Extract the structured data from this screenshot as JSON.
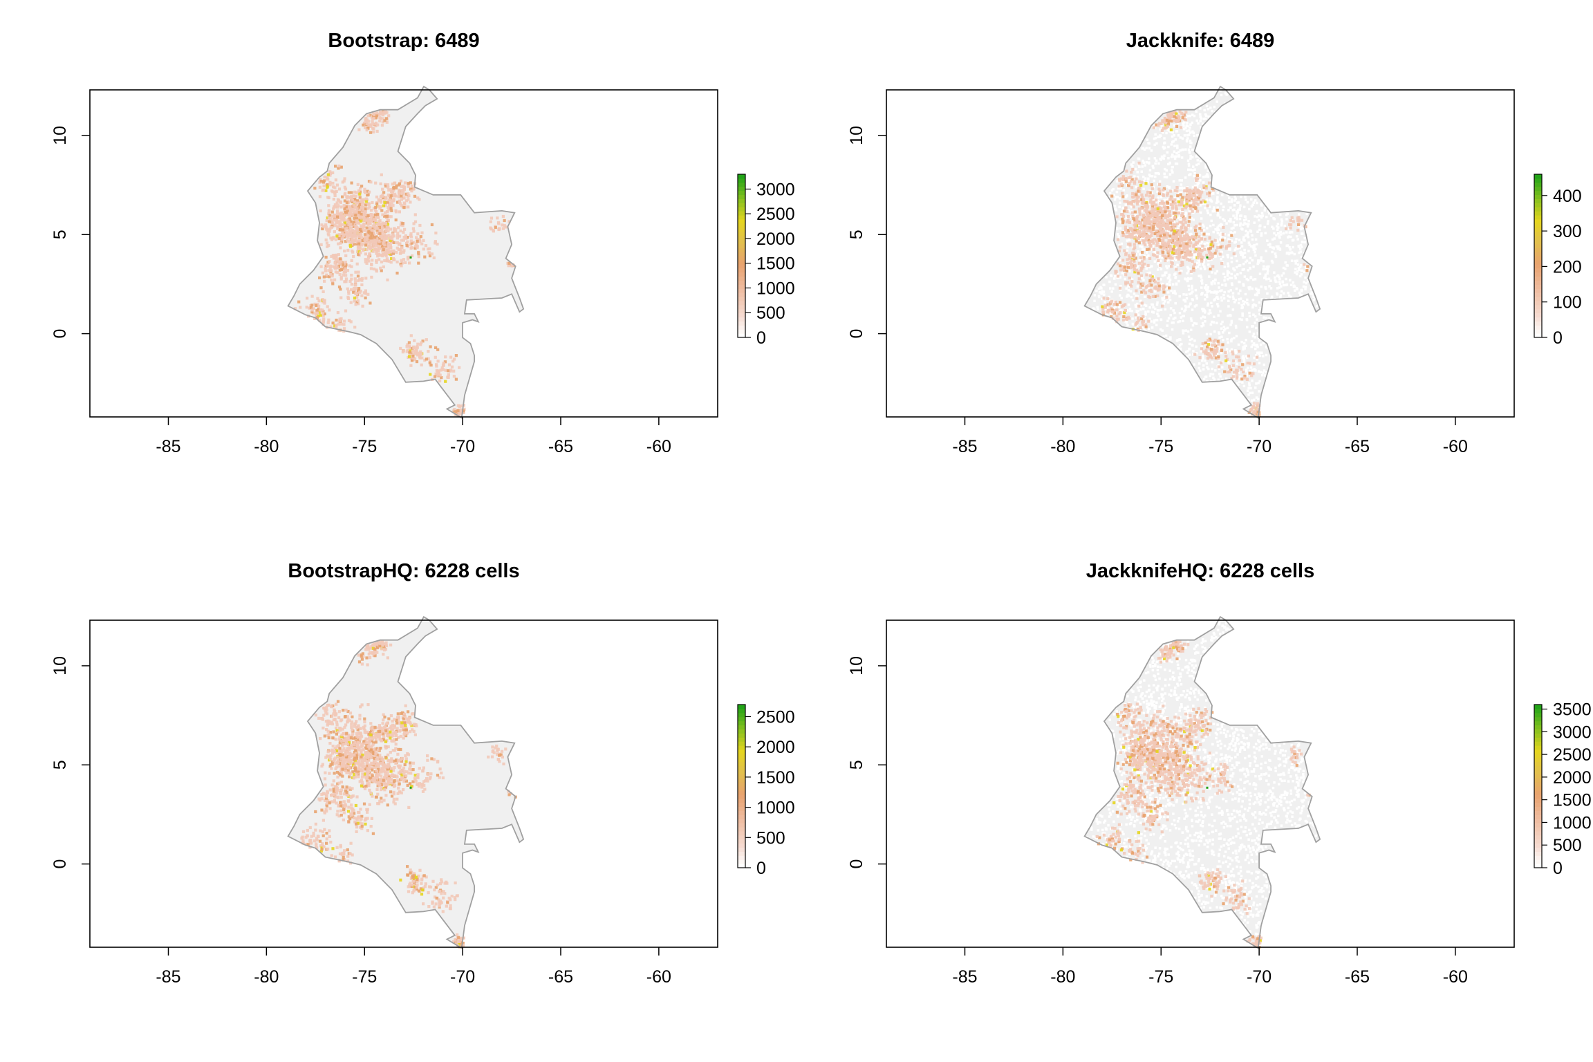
{
  "panels": [
    {
      "title": "Bootstrap: 6489",
      "x_ticks": [
        "-85",
        "-80",
        "-75",
        "-70",
        "-65",
        "-60"
      ],
      "y_ticks": [
        "0",
        "5",
        "10"
      ],
      "legend_labels": [
        "0",
        "500",
        "1000",
        "1500",
        "2000",
        "2500",
        "3000"
      ],
      "legend_max": 3300,
      "sparse_background": false
    },
    {
      "title": "Jackknife: 6489",
      "x_ticks": [
        "-85",
        "-80",
        "-75",
        "-70",
        "-65",
        "-60"
      ],
      "y_ticks": [
        "0",
        "5",
        "10"
      ],
      "legend_labels": [
        "0",
        "100",
        "200",
        "300",
        "400"
      ],
      "legend_max": 460,
      "sparse_background": true
    },
    {
      "title": "BootstrapHQ: 6228 cells",
      "x_ticks": [
        "-85",
        "-80",
        "-75",
        "-70",
        "-65",
        "-60"
      ],
      "y_ticks": [
        "0",
        "5",
        "10"
      ],
      "legend_labels": [
        "0",
        "500",
        "1000",
        "1500",
        "2000",
        "2500"
      ],
      "legend_max": 2700,
      "sparse_background": false
    },
    {
      "title": "JackknifeHQ: 6228 cells",
      "x_ticks": [
        "-85",
        "-80",
        "-75",
        "-70",
        "-65",
        "-60"
      ],
      "y_ticks": [
        "0",
        "5",
        "10"
      ],
      "legend_labels": [
        "0",
        "500",
        "1000",
        "1500",
        "2000",
        "2500",
        "3000",
        "3500"
      ],
      "legend_max": 3600,
      "sparse_background": true
    }
  ],
  "colors": {
    "land": "#f0f0f0",
    "border": "#a0a0a0",
    "low": "#f2c9b8",
    "mid": "#e8a36f",
    "high_yellow": "#e5d51f",
    "high_green": "#22a418"
  },
  "axes": {
    "xlim": [
      -89,
      -57
    ],
    "ylim": [
      -4.2,
      12.3
    ]
  }
}
